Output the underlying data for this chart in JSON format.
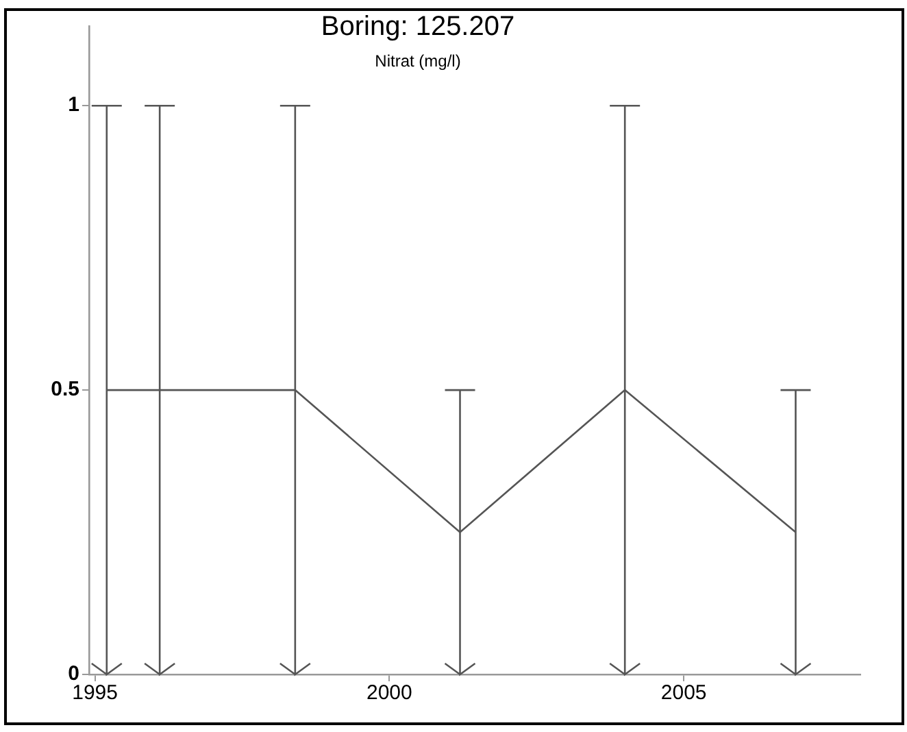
{
  "chart_data": {
    "type": "line",
    "title": "Boring: 125.207",
    "subtitle": "Nitrat (mg/l)",
    "x": [
      1995.2,
      1996.1,
      1998.4,
      2001.2,
      2004.0,
      2006.9
    ],
    "values": [
      0.5,
      0.5,
      0.5,
      0.25,
      0.5,
      0.25
    ],
    "errors": [
      0.5,
      0.5,
      0.5,
      0.25,
      0.5,
      0.25
    ],
    "color": "#555555",
    "xlim": [
      1994.9,
      2008
    ],
    "xticks": [
      1995,
      2000,
      2005
    ],
    "ylim": [
      0,
      1.14
    ],
    "yticks": [
      0,
      0.5,
      1
    ],
    "grid": false,
    "legend": false,
    "marker": "none",
    "line_style": "solid"
  }
}
